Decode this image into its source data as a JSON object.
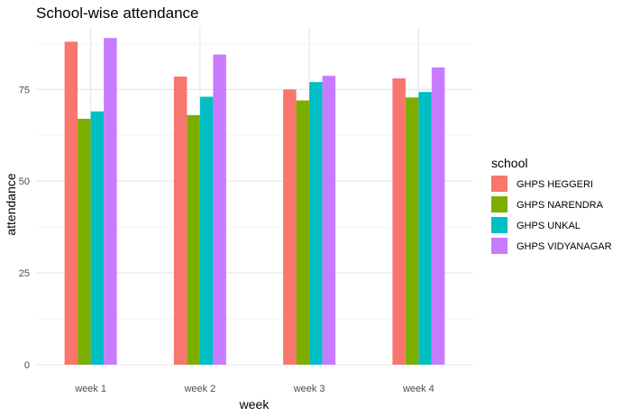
{
  "chart_data": {
    "type": "bar",
    "title": "School-wise attendance",
    "xlabel": "week",
    "ylabel": "attendance",
    "categories": [
      "week 1",
      "week 2",
      "week 3",
      "week 4"
    ],
    "series": [
      {
        "name": "GHPS HEGGERI",
        "color": "#F8766D",
        "values": [
          88,
          78.5,
          75,
          78
        ]
      },
      {
        "name": "GHPS NARENDRA",
        "color": "#7CAE00",
        "values": [
          67,
          68,
          72,
          72.8
        ]
      },
      {
        "name": "GHPS UNKAL",
        "color": "#00BFC4",
        "values": [
          69,
          73,
          77,
          74.3
        ]
      },
      {
        "name": "GHPS VIDYANAGAR",
        "color": "#C77CFF",
        "values": [
          89,
          84.5,
          78.7,
          81
        ]
      }
    ],
    "ylim": [
      0,
      92
    ],
    "yticks": [
      0,
      25,
      50,
      75
    ],
    "grid": true,
    "legend": {
      "title": "school",
      "position": "right"
    }
  }
}
